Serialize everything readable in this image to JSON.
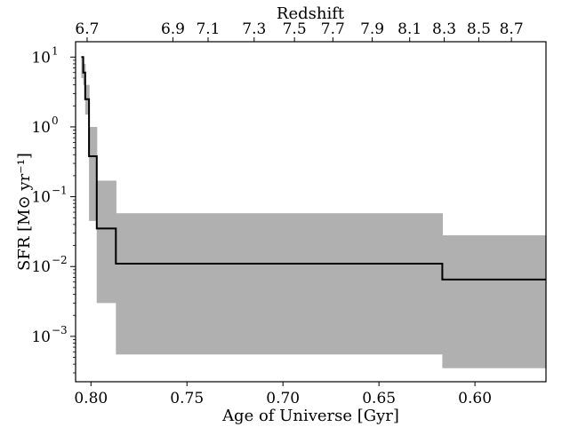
{
  "chart_data": {
    "type": "area",
    "xlabel": "Age of Universe [Gyr]",
    "ylabel": "SFR [M⊙ yr⁻¹]",
    "top_axis_label": "Redshift",
    "x_reversed": true,
    "xlim": [
      0.808,
      0.563
    ],
    "ylim_log10": [
      -3.65,
      1.22
    ],
    "yscale": "log",
    "bottom_ticks": [
      {
        "value": 0.8,
        "label": "0.80"
      },
      {
        "value": 0.75,
        "label": "0.75"
      },
      {
        "value": 0.7,
        "label": "0.70"
      },
      {
        "value": 0.65,
        "label": "0.65"
      },
      {
        "value": 0.6,
        "label": "0.60"
      }
    ],
    "top_ticks": [
      {
        "value": 0.802,
        "label": "6.7"
      },
      {
        "value": 0.7573,
        "label": "6.9"
      },
      {
        "value": 0.739,
        "label": "7.1"
      },
      {
        "value": 0.715,
        "label": "7.3"
      },
      {
        "value": 0.694,
        "label": "7.5"
      },
      {
        "value": 0.674,
        "label": "7.7"
      },
      {
        "value": 0.6535,
        "label": "7.9"
      },
      {
        "value": 0.634,
        "label": "8.1"
      },
      {
        "value": 0.616,
        "label": "8.3"
      },
      {
        "value": 0.598,
        "label": "8.5"
      },
      {
        "value": 0.581,
        "label": "8.7"
      }
    ],
    "y_ticks": [
      {
        "exp": 1,
        "base": "10",
        "sup": "1"
      },
      {
        "exp": 0,
        "base": "10",
        "sup": "0"
      },
      {
        "exp": -1,
        "base": "10",
        "sup": "−1"
      },
      {
        "exp": -2,
        "base": "10",
        "sup": "−2"
      },
      {
        "exp": -3,
        "base": "10",
        "sup": "−3"
      }
    ],
    "sfr_steps": [
      {
        "age_start": 0.805,
        "age_end": 0.804,
        "sfr": 10.0,
        "lo": 5.0,
        "hi": 10.0
      },
      {
        "age_start": 0.804,
        "age_end": 0.803,
        "sfr": 6.0,
        "lo": 4.0,
        "hi": 8.0
      },
      {
        "age_start": 0.803,
        "age_end": 0.801,
        "sfr": 2.5,
        "lo": 1.5,
        "hi": 4.0
      },
      {
        "age_start": 0.801,
        "age_end": 0.797,
        "sfr": 0.38,
        "lo": 0.045,
        "hi": 1.0
      },
      {
        "age_start": 0.797,
        "age_end": 0.787,
        "sfr": 0.035,
        "lo": 0.003,
        "hi": 0.17
      },
      {
        "age_start": 0.787,
        "age_end": 0.75,
        "sfr": 0.011,
        "lo": 0.00055,
        "hi": 0.058
      },
      {
        "age_start": 0.75,
        "age_end": 0.617,
        "sfr": 0.011,
        "lo": 0.00055,
        "hi": 0.058
      },
      {
        "age_start": 0.617,
        "age_end": 0.563,
        "sfr": 0.0065,
        "lo": 0.00035,
        "hi": 0.028
      }
    ],
    "colors": {
      "line": "#000000",
      "band": "#b0b0b0"
    }
  }
}
